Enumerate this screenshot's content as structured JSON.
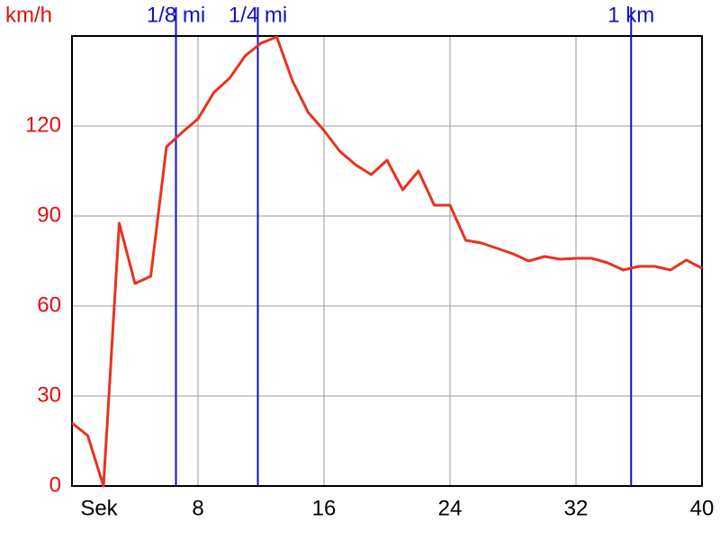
{
  "chart_data": {
    "type": "line",
    "x_label": "Sek",
    "y_label": "km/h",
    "x": [
      0,
      1,
      2,
      3,
      4,
      5,
      6,
      7,
      8,
      9,
      10,
      11,
      12,
      13,
      14,
      15,
      16,
      17,
      18,
      19,
      20,
      21,
      22,
      23,
      24,
      25,
      26,
      27,
      28,
      29,
      30,
      31,
      32,
      33,
      34,
      35,
      36,
      37,
      38,
      39,
      40
    ],
    "values": [
      21,
      16.8,
      0,
      87.6,
      67.5,
      69.9,
      113.1,
      117.9,
      122.4,
      131.1,
      135.9,
      143.4,
      147.6,
      149.7,
      135,
      124.5,
      118.5,
      111.6,
      107.1,
      103.8,
      108.6,
      98.7,
      105,
      93.6,
      93.6,
      81.9,
      81,
      79.2,
      77.4,
      75,
      76.5,
      75.6,
      75.9,
      75.9,
      74.4,
      72,
      73.2,
      73.2,
      72,
      75.3,
      72.6
    ],
    "color": "#e8321e",
    "xlim": [
      0,
      40
    ],
    "xticks": [
      8,
      16,
      24,
      32,
      40
    ],
    "ylim": [
      0,
      150
    ],
    "yticks": [
      0,
      30,
      60,
      90,
      120
    ],
    "grid": true,
    "markers": [
      {
        "label": "1/8 mi",
        "x": 6.6
      },
      {
        "label": "1/4 mi",
        "x": 11.8
      },
      {
        "label": "1 km",
        "x": 35.5
      }
    ],
    "marker_color": "#1010c8",
    "axis_label_color": "#e01010"
  }
}
